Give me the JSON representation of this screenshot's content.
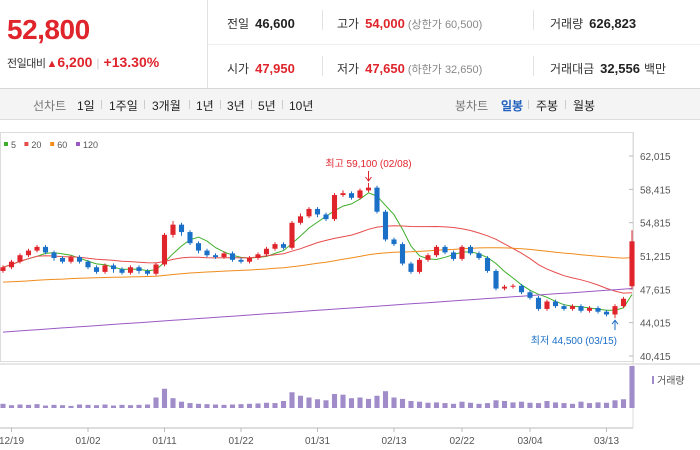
{
  "summary": {
    "price": "52,800",
    "change_label": "전일대비",
    "change_arrow": "▲",
    "change_amount": "6,200",
    "change_percent": "+13.30%",
    "prev_close_label": "전일",
    "prev_close": "46,600",
    "open_label": "시가",
    "open": "47,950",
    "high_label": "고가",
    "high": "54,000",
    "upper_limit": "(상한가 60,500)",
    "low_label": "저가",
    "low": "47,650",
    "lower_limit": "(하한가 32,650)",
    "volume_label": "거래량",
    "volume": "626,823",
    "amount_label": "거래대금",
    "amount": "32,556",
    "amount_unit": "백만"
  },
  "toolbar": {
    "line_chart_label": "선차트",
    "line_periods": [
      "1일",
      "1주일",
      "3개월",
      "1년",
      "3년",
      "5년",
      "10년"
    ],
    "candle_label": "봉차트",
    "candle_periods": [
      "일봉",
      "주봉",
      "월봉"
    ],
    "active_candle": "일봉"
  },
  "colors": {
    "up": "#e0242c",
    "down": "#1a6fc7",
    "ma5": "#3fae2a",
    "ma20": "#e74c4c",
    "ma60": "#f08c1c",
    "ma120": "#9b59c6",
    "volume": "#a08cc8"
  },
  "chart_data": {
    "type": "candlestick",
    "legend": [
      {
        "name": "5",
        "color": "#3fae2a"
      },
      {
        "name": "20",
        "color": "#e74c4c"
      },
      {
        "name": "60",
        "color": "#f08c1c"
      },
      {
        "name": "120",
        "color": "#9b59c6"
      }
    ],
    "y_ticks": [
      "62,015",
      "58,415",
      "54,815",
      "51,215",
      "47,615",
      "44,015",
      "40,415"
    ],
    "ylim": [
      40415,
      62015
    ],
    "x_ticks": [
      {
        "label": "12/19",
        "index": 1
      },
      {
        "label": "01/02",
        "index": 10
      },
      {
        "label": "01/11",
        "index": 19
      },
      {
        "label": "01/22",
        "index": 28
      },
      {
        "label": "01/31",
        "index": 37
      },
      {
        "label": "02/13",
        "index": 46
      },
      {
        "label": "02/22",
        "index": 54
      },
      {
        "label": "03/04",
        "index": 62
      },
      {
        "label": "03/13",
        "index": 71
      }
    ],
    "annotations": {
      "high": {
        "text": "최고 59,100 (02/08)",
        "index": 43,
        "value": 59100
      },
      "low": {
        "text": "최저 44,500 (03/15)",
        "index": 72,
        "value": 44500
      }
    },
    "volume_label": "거래량",
    "candles": [
      {
        "o": 49600,
        "c": 50000,
        "h": 50200,
        "l": 49400
      },
      {
        "o": 50000,
        "c": 50600,
        "h": 50800,
        "l": 49800
      },
      {
        "o": 50600,
        "c": 51300,
        "h": 51500,
        "l": 50400
      },
      {
        "o": 51300,
        "c": 51800,
        "h": 52000,
        "l": 51100
      },
      {
        "o": 51800,
        "c": 52200,
        "h": 52400,
        "l": 51600
      },
      {
        "o": 52200,
        "c": 51600,
        "h": 52400,
        "l": 51400
      },
      {
        "o": 51600,
        "c": 51000,
        "h": 51800,
        "l": 50700
      },
      {
        "o": 51000,
        "c": 50600,
        "h": 51200,
        "l": 50400
      },
      {
        "o": 50600,
        "c": 51100,
        "h": 51300,
        "l": 50400
      },
      {
        "o": 51100,
        "c": 50600,
        "h": 51300,
        "l": 50400
      },
      {
        "o": 50600,
        "c": 50000,
        "h": 50800,
        "l": 49800
      },
      {
        "o": 50000,
        "c": 49500,
        "h": 50200,
        "l": 49300
      },
      {
        "o": 49500,
        "c": 50200,
        "h": 50400,
        "l": 49300
      },
      {
        "o": 50200,
        "c": 49800,
        "h": 50400,
        "l": 49400
      },
      {
        "o": 49800,
        "c": 49400,
        "h": 50000,
        "l": 49200
      },
      {
        "o": 49400,
        "c": 50000,
        "h": 50200,
        "l": 49200
      },
      {
        "o": 50000,
        "c": 49600,
        "h": 50200,
        "l": 49300
      },
      {
        "o": 49600,
        "c": 49300,
        "h": 49800,
        "l": 49100
      },
      {
        "o": 49300,
        "c": 50300,
        "h": 50500,
        "l": 49100
      },
      {
        "o": 50300,
        "c": 53500,
        "h": 53700,
        "l": 50100
      },
      {
        "o": 53500,
        "c": 54600,
        "h": 55000,
        "l": 53200
      },
      {
        "o": 54600,
        "c": 53800,
        "h": 54800,
        "l": 53400
      },
      {
        "o": 53800,
        "c": 52600,
        "h": 54000,
        "l": 52400
      },
      {
        "o": 52600,
        "c": 51800,
        "h": 52800,
        "l": 51500
      },
      {
        "o": 51800,
        "c": 51300,
        "h": 52000,
        "l": 51100
      },
      {
        "o": 51300,
        "c": 51100,
        "h": 51500,
        "l": 50900
      },
      {
        "o": 51100,
        "c": 51500,
        "h": 51700,
        "l": 50900
      },
      {
        "o": 51500,
        "c": 50800,
        "h": 51700,
        "l": 50600
      },
      {
        "o": 50800,
        "c": 50600,
        "h": 51000,
        "l": 50400
      },
      {
        "o": 50600,
        "c": 51000,
        "h": 51200,
        "l": 50400
      },
      {
        "o": 51000,
        "c": 51400,
        "h": 51600,
        "l": 50800
      },
      {
        "o": 51400,
        "c": 52000,
        "h": 52200,
        "l": 51200
      },
      {
        "o": 52000,
        "c": 52500,
        "h": 52700,
        "l": 51800
      },
      {
        "o": 52500,
        "c": 52100,
        "h": 52700,
        "l": 51900
      },
      {
        "o": 52100,
        "c": 54800,
        "h": 55000,
        "l": 51900
      },
      {
        "o": 54800,
        "c": 55500,
        "h": 55800,
        "l": 54600
      },
      {
        "o": 55500,
        "c": 56300,
        "h": 56500,
        "l": 55300
      },
      {
        "o": 56300,
        "c": 55700,
        "h": 56500,
        "l": 55400
      },
      {
        "o": 55700,
        "c": 55200,
        "h": 55900,
        "l": 55000
      },
      {
        "o": 55200,
        "c": 57800,
        "h": 58000,
        "l": 55000
      },
      {
        "o": 57800,
        "c": 58000,
        "h": 58300,
        "l": 57600
      },
      {
        "o": 58000,
        "c": 57500,
        "h": 58200,
        "l": 57300
      },
      {
        "o": 57500,
        "c": 58300,
        "h": 58500,
        "l": 57300
      },
      {
        "o": 58300,
        "c": 58600,
        "h": 59100,
        "l": 58100
      },
      {
        "o": 58600,
        "c": 56000,
        "h": 58800,
        "l": 55800
      },
      {
        "o": 56000,
        "c": 53000,
        "h": 56200,
        "l": 52800
      },
      {
        "o": 53000,
        "c": 52500,
        "h": 53200,
        "l": 52300
      },
      {
        "o": 52500,
        "c": 50400,
        "h": 52700,
        "l": 50200
      },
      {
        "o": 50400,
        "c": 49500,
        "h": 50600,
        "l": 49300
      },
      {
        "o": 49500,
        "c": 50800,
        "h": 51000,
        "l": 49300
      },
      {
        "o": 50800,
        "c": 51300,
        "h": 51500,
        "l": 50600
      },
      {
        "o": 51300,
        "c": 52200,
        "h": 52400,
        "l": 51100
      },
      {
        "o": 52200,
        "c": 51600,
        "h": 52400,
        "l": 51400
      },
      {
        "o": 51600,
        "c": 50900,
        "h": 51800,
        "l": 50700
      },
      {
        "o": 50900,
        "c": 52200,
        "h": 52400,
        "l": 50700
      },
      {
        "o": 52200,
        "c": 51500,
        "h": 52400,
        "l": 51300
      },
      {
        "o": 51500,
        "c": 51000,
        "h": 51700,
        "l": 50800
      },
      {
        "o": 51000,
        "c": 49600,
        "h": 51200,
        "l": 49400
      },
      {
        "o": 49600,
        "c": 47700,
        "h": 49800,
        "l": 47500
      },
      {
        "o": 47700,
        "c": 47900,
        "h": 48100,
        "l": 47500
      },
      {
        "o": 47900,
        "c": 48000,
        "h": 48200,
        "l": 47700
      },
      {
        "o": 48000,
        "c": 47300,
        "h": 48200,
        "l": 47100
      },
      {
        "o": 47300,
        "c": 46700,
        "h": 47500,
        "l": 46500
      },
      {
        "o": 46700,
        "c": 45500,
        "h": 46900,
        "l": 45300
      },
      {
        "o": 45500,
        "c": 46300,
        "h": 46500,
        "l": 45300
      },
      {
        "o": 46300,
        "c": 45800,
        "h": 46500,
        "l": 45600
      },
      {
        "o": 45800,
        "c": 45500,
        "h": 46000,
        "l": 45300
      },
      {
        "o": 45500,
        "c": 45800,
        "h": 46000,
        "l": 45300
      },
      {
        "o": 45800,
        "c": 45300,
        "h": 46000,
        "l": 45100
      },
      {
        "o": 45300,
        "c": 45600,
        "h": 45800,
        "l": 45100
      },
      {
        "o": 45600,
        "c": 45200,
        "h": 45800,
        "l": 45000
      },
      {
        "o": 45200,
        "c": 44900,
        "h": 45400,
        "l": 44700
      },
      {
        "o": 44900,
        "c": 45800,
        "h": 46000,
        "l": 44500
      },
      {
        "o": 45800,
        "c": 46600,
        "h": 46800,
        "l": 45600
      },
      {
        "o": 47950,
        "c": 52800,
        "h": 54000,
        "l": 47650
      }
    ],
    "volumes": [
      12,
      8,
      10,
      9,
      11,
      7,
      9,
      8,
      6,
      10,
      9,
      8,
      10,
      7,
      9,
      8,
      9,
      10,
      30,
      55,
      28,
      18,
      14,
      12,
      11,
      10,
      9,
      10,
      11,
      12,
      13,
      15,
      14,
      20,
      45,
      35,
      30,
      25,
      22,
      40,
      38,
      28,
      30,
      26,
      35,
      48,
      30,
      26,
      20,
      18,
      15,
      16,
      14,
      12,
      18,
      15,
      12,
      14,
      22,
      20,
      16,
      18,
      15,
      14,
      20,
      16,
      14,
      12,
      18,
      14,
      16,
      15,
      22,
      25,
      120
    ]
  }
}
